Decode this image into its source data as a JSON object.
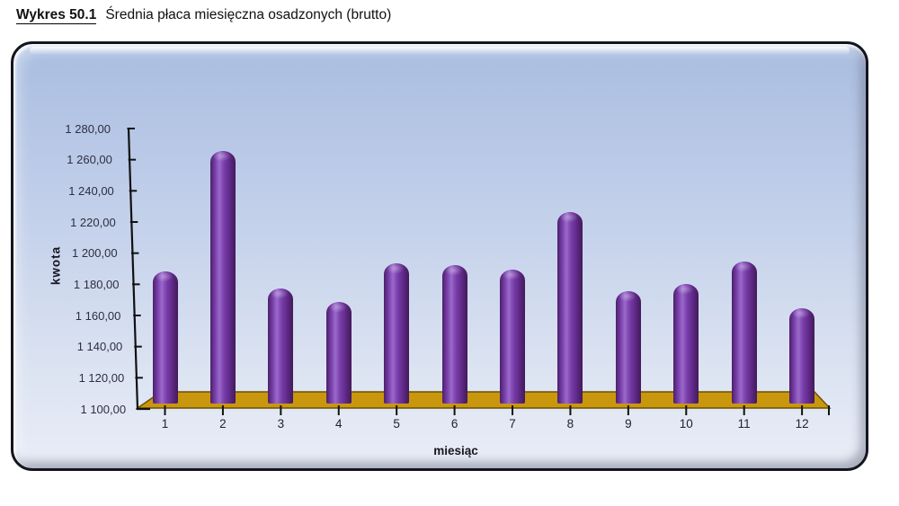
{
  "title": {
    "label": "Wykres 50.1",
    "text": "Średnia płaca miesięczna osadzonych (brutto)"
  },
  "chart_data": {
    "type": "bar",
    "variant": "3d-cylinder-columns",
    "title": "Średnia płaca miesięczna osadzonych (brutto)",
    "categories": [
      "1",
      "2",
      "3",
      "4",
      "5",
      "6",
      "7",
      "8",
      "9",
      "10",
      "11",
      "12"
    ],
    "values": [
      1185,
      1262,
      1174,
      1165,
      1190,
      1189,
      1186,
      1223,
      1172,
      1177,
      1191,
      1161
    ],
    "xlabel": "miesiąc",
    "ylabel": "kwota",
    "ylim": [
      1100,
      1280
    ],
    "ytick_step": 20,
    "ytick_labels": [
      "1 280,00",
      "1 260,00",
      "1 240,00",
      "1 220,00",
      "1 200,00",
      "1 180,00",
      "1 160,00",
      "1 140,00",
      "1 120,00",
      "1 100,00"
    ],
    "grid": false,
    "legend": "none",
    "colors": {
      "bar": "#7030A0",
      "bar_highlight": "#9A68CA",
      "bar_shadow": "#431A5C",
      "floor": "#C9970E",
      "floor_outline": "#6B5100",
      "panel_top": "#A9BDE0",
      "panel_bottom": "#E9EDF7",
      "frame_border": "#15151F",
      "axis": "#111111"
    }
  }
}
